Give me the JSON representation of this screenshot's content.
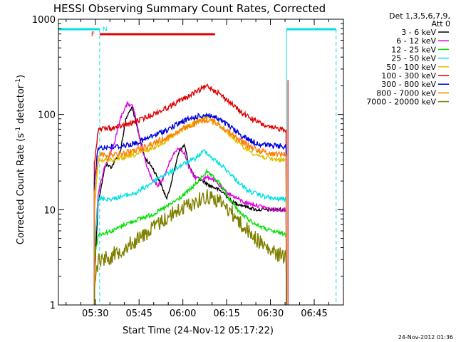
{
  "chart_data": {
    "type": "line",
    "title": "HESSI Observing Summary Count Rates, Corrected",
    "xlabel": "Start Time (24-Nov-12 05:17:22)",
    "ylabel_main": "Corrected Count Rate (s",
    "ylabel_sup1": "-1",
    "ylabel_mid": " detector",
    "ylabel_sup2": "-1",
    "ylabel_end": ")",
    "yscale": "log",
    "ylim": [
      1,
      1000
    ],
    "xlim": [
      "05:17:22",
      "06:55:00"
    ],
    "x_ticks": [
      "05:30",
      "05:45",
      "06:00",
      "06:15",
      "06:30",
      "06:45"
    ],
    "y_ticks": [
      "1",
      "10",
      "100",
      "1000"
    ],
    "legend_placement": "right",
    "legend_header_1": "Det 1,3,5,6,7,9,",
    "legend_header_2": "Att 0",
    "timestamp": "24-Nov-2012 01:36",
    "annotations": {
      "flare_flag": "F",
      "night_flag": "N",
      "flare_color": "#e00000",
      "night_color": "#00e0e0"
    },
    "series": [
      {
        "name": "3 - 6 keV",
        "color": "#000000",
        "points": [
          [
            "05:29:40",
            2.0
          ],
          [
            "05:31:00",
            12
          ],
          [
            "05:33:30",
            30
          ],
          [
            "05:35:30",
            28
          ],
          [
            "05:38:30",
            40
          ],
          [
            "05:40:30",
            90
          ],
          [
            "05:42:30",
            120
          ],
          [
            "05:44:30",
            70
          ],
          [
            "05:47:00",
            35
          ],
          [
            "05:49:30",
            28
          ],
          [
            "05:52:00",
            20
          ],
          [
            "05:54:30",
            13
          ],
          [
            "05:56:30",
            22
          ],
          [
            "05:58:30",
            40
          ],
          [
            "06:00:30",
            48
          ],
          [
            "06:02:00",
            30
          ],
          [
            "06:04:00",
            22
          ],
          [
            "06:07:00",
            20
          ],
          [
            "06:09:00",
            18
          ],
          [
            "06:11:00",
            17
          ],
          [
            "06:14:00",
            15
          ],
          [
            "06:17:00",
            12
          ],
          [
            "06:21:00",
            11
          ],
          [
            "06:25:00",
            10
          ],
          [
            "06:30:00",
            10
          ],
          [
            "06:33:00",
            10
          ],
          [
            "06:35:30",
            10
          ]
        ]
      },
      {
        "name": "6 - 12 keV",
        "color": "#e000e0",
        "points": [
          [
            "05:29:40",
            3.5
          ],
          [
            "05:31:00",
            15
          ],
          [
            "05:33:30",
            30
          ],
          [
            "05:36:30",
            50
          ],
          [
            "05:39:00",
            100
          ],
          [
            "05:41:00",
            130
          ],
          [
            "05:43:00",
            120
          ],
          [
            "05:45:00",
            60
          ],
          [
            "05:47:00",
            33
          ],
          [
            "05:49:30",
            20
          ],
          [
            "05:51:30",
            18
          ],
          [
            "05:53:30",
            22
          ],
          [
            "05:56:00",
            35
          ],
          [
            "05:58:30",
            45
          ],
          [
            "06:00:30",
            40
          ],
          [
            "06:02:00",
            28
          ],
          [
            "06:04:00",
            22
          ],
          [
            "06:06:30",
            21
          ],
          [
            "06:09:00",
            22
          ],
          [
            "06:11:00",
            20
          ],
          [
            "06:14:00",
            16
          ],
          [
            "06:17:00",
            14
          ],
          [
            "06:21:00",
            12
          ],
          [
            "06:26:00",
            11
          ],
          [
            "06:31:00",
            10
          ],
          [
            "06:35:30",
            10
          ]
        ]
      },
      {
        "name": "12 - 25 keV",
        "color": "#00e000",
        "points": [
          [
            "05:29:40",
            3.0
          ],
          [
            "05:31:00",
            5.5
          ],
          [
            "05:36:00",
            6
          ],
          [
            "05:40:00",
            7
          ],
          [
            "05:45:00",
            8
          ],
          [
            "05:50:00",
            9
          ],
          [
            "05:55:00",
            11
          ],
          [
            "06:00:00",
            14
          ],
          [
            "06:04:00",
            18
          ],
          [
            "06:08:00",
            25
          ],
          [
            "06:12:00",
            20
          ],
          [
            "06:16:00",
            13
          ],
          [
            "06:20:00",
            9
          ],
          [
            "06:25:00",
            7
          ],
          [
            "06:30:00",
            6
          ],
          [
            "06:35:30",
            5.5
          ]
        ]
      },
      {
        "name": "25 - 50 keV",
        "color": "#00e0e0",
        "points": [
          [
            "05:29:40",
            4
          ],
          [
            "05:31:00",
            13
          ],
          [
            "05:36:00",
            13
          ],
          [
            "05:40:00",
            14
          ],
          [
            "05:44:00",
            15
          ],
          [
            "05:48:00",
            18
          ],
          [
            "05:52:00",
            22
          ],
          [
            "05:56:00",
            25
          ],
          [
            "06:00:00",
            30
          ],
          [
            "06:04:00",
            34
          ],
          [
            "06:07:30",
            42
          ],
          [
            "06:10:00",
            35
          ],
          [
            "06:14:00",
            28
          ],
          [
            "06:18:00",
            21
          ],
          [
            "06:22:00",
            16
          ],
          [
            "06:27:00",
            14
          ],
          [
            "06:31:00",
            13
          ],
          [
            "06:35:30",
            13
          ]
        ]
      },
      {
        "name": "50 - 100 keV",
        "color": "#e0c000",
        "points": [
          [
            "05:29:40",
            10
          ],
          [
            "05:31:00",
            33
          ],
          [
            "05:38:00",
            34
          ],
          [
            "05:44:00",
            38
          ],
          [
            "05:50:00",
            45
          ],
          [
            "05:55:00",
            55
          ],
          [
            "06:00:00",
            70
          ],
          [
            "06:05:00",
            85
          ],
          [
            "06:08:30",
            95
          ],
          [
            "06:12:00",
            80
          ],
          [
            "06:16:00",
            62
          ],
          [
            "06:20:00",
            47
          ],
          [
            "06:25:00",
            38
          ],
          [
            "06:30:00",
            34
          ],
          [
            "06:35:30",
            33
          ]
        ]
      },
      {
        "name": "100 - 300 keV",
        "color": "#e00000",
        "points": [
          [
            "05:29:40",
            30
          ],
          [
            "05:31:00",
            70
          ],
          [
            "05:36:00",
            72
          ],
          [
            "05:42:00",
            80
          ],
          [
            "05:48:00",
            95
          ],
          [
            "05:54:00",
            115
          ],
          [
            "06:00:00",
            145
          ],
          [
            "06:05:00",
            175
          ],
          [
            "06:08:30",
            200
          ],
          [
            "06:12:00",
            170
          ],
          [
            "06:16:00",
            135
          ],
          [
            "06:20:00",
            105
          ],
          [
            "06:25:00",
            85
          ],
          [
            "06:30:00",
            72
          ],
          [
            "06:35:30",
            70
          ]
        ]
      },
      {
        "name": "300 - 800 keV",
        "color": "#0000e0",
        "points": [
          [
            "05:29:40",
            20
          ],
          [
            "05:31:00",
            45
          ],
          [
            "05:38:00",
            46
          ],
          [
            "05:44:00",
            50
          ],
          [
            "05:50:00",
            60
          ],
          [
            "05:55:00",
            70
          ],
          [
            "06:00:00",
            85
          ],
          [
            "06:05:00",
            95
          ],
          [
            "06:08:30",
            100
          ],
          [
            "06:12:00",
            90
          ],
          [
            "06:16:00",
            75
          ],
          [
            "06:20:00",
            60
          ],
          [
            "06:25:00",
            50
          ],
          [
            "06:30:00",
            47
          ],
          [
            "06:35:30",
            46
          ]
        ]
      },
      {
        "name": "800 - 7000 keV",
        "color": "#ff8000",
        "points": [
          [
            "05:29:40",
            15
          ],
          [
            "05:31:00",
            38
          ],
          [
            "05:38:00",
            38
          ],
          [
            "05:44:00",
            42
          ],
          [
            "05:50:00",
            50
          ],
          [
            "05:55:00",
            58
          ],
          [
            "06:00:00",
            70
          ],
          [
            "06:05:00",
            82
          ],
          [
            "06:08:30",
            88
          ],
          [
            "06:12:00",
            80
          ],
          [
            "06:16:00",
            65
          ],
          [
            "06:20:00",
            52
          ],
          [
            "06:25:00",
            43
          ],
          [
            "06:30:00",
            39
          ],
          [
            "06:35:30",
            38
          ]
        ]
      },
      {
        "name": "7000 - 20000 keV",
        "color": "#808000",
        "points": [
          [
            "05:29:40",
            1.5
          ],
          [
            "05:31:00",
            3
          ],
          [
            "05:35:00",
            3.2
          ],
          [
            "05:40:00",
            4
          ],
          [
            "05:45:00",
            5
          ],
          [
            "05:50:00",
            6.5
          ],
          [
            "05:55:00",
            8.5
          ],
          [
            "06:00:00",
            10.5
          ],
          [
            "06:05:00",
            12.5
          ],
          [
            "06:08:30",
            14
          ],
          [
            "06:12:00",
            12.5
          ],
          [
            "06:16:00",
            10
          ],
          [
            "06:20:00",
            7
          ],
          [
            "06:25:00",
            5
          ],
          [
            "06:30:00",
            3.6
          ],
          [
            "06:35:30",
            3.2
          ]
        ]
      }
    ]
  }
}
